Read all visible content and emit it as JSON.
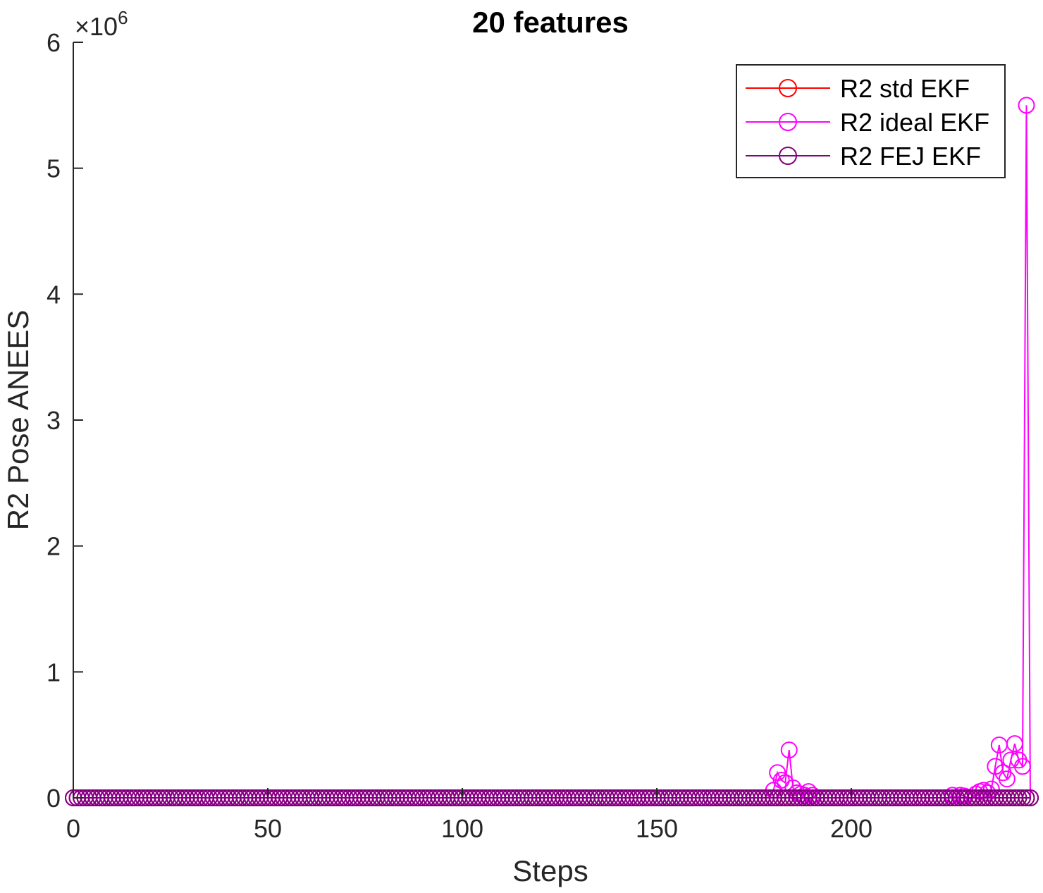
{
  "chart_data": {
    "type": "line",
    "title": "20 features",
    "xlabel": "Steps",
    "ylabel": "R2 Pose ANEES",
    "y_exponent_label": "×10",
    "y_exponent_power": "6",
    "xlim": [
      0,
      246
    ],
    "ylim": [
      0,
      6000000
    ],
    "x_ticks": [
      0,
      50,
      100,
      150,
      200
    ],
    "x_tick_labels": [
      "0",
      "50",
      "100",
      "150",
      "200"
    ],
    "y_ticks": [
      0,
      1000000,
      2000000,
      3000000,
      4000000,
      5000000,
      6000000
    ],
    "y_tick_labels": [
      "0",
      "1",
      "2",
      "3",
      "4",
      "5",
      "6"
    ],
    "grid": false,
    "legend_position": "top-right",
    "marker": "circle",
    "series": [
      {
        "name": "R2 std EKF",
        "color": "#ff0000",
        "x_range": [
          0,
          246
        ],
        "value_default": 0,
        "points": []
      },
      {
        "name": "R2 ideal EKF",
        "color": "#ff00ff",
        "x_range": [
          0,
          246
        ],
        "value_default": 0,
        "points": [
          [
            180,
            60000
          ],
          [
            181,
            200000
          ],
          [
            182,
            140000
          ],
          [
            183,
            120000
          ],
          [
            184,
            380000
          ],
          [
            185,
            80000
          ],
          [
            186,
            40000
          ],
          [
            187,
            30000
          ],
          [
            188,
            20000
          ],
          [
            189,
            50000
          ],
          [
            190,
            20000
          ],
          [
            226,
            20000
          ],
          [
            228,
            20000
          ],
          [
            229,
            15000
          ],
          [
            232,
            30000
          ],
          [
            233,
            50000
          ],
          [
            234,
            60000
          ],
          [
            235,
            40000
          ],
          [
            236,
            70000
          ],
          [
            237,
            250000
          ],
          [
            238,
            420000
          ],
          [
            239,
            200000
          ],
          [
            240,
            150000
          ],
          [
            241,
            300000
          ],
          [
            242,
            430000
          ],
          [
            243,
            300000
          ],
          [
            244,
            250000
          ],
          [
            245,
            5500000
          ]
        ]
      },
      {
        "name": "R2 FEJ EKF",
        "color": "#800080",
        "x_range": [
          0,
          246
        ],
        "value_default": 0,
        "points": []
      }
    ]
  }
}
